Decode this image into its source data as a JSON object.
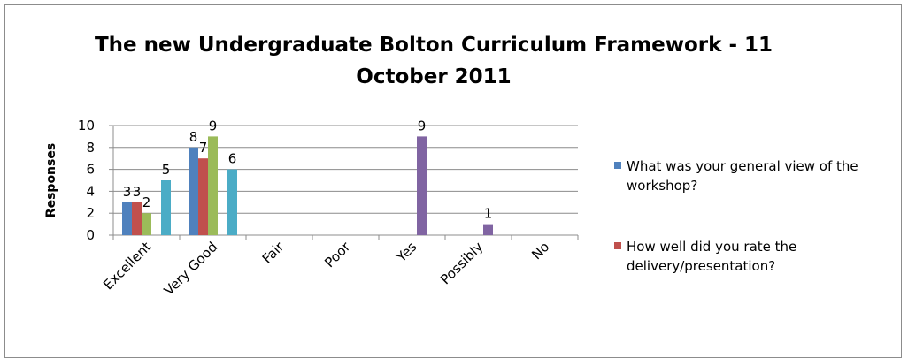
{
  "chart_data": {
    "type": "bar",
    "title_lines": [
      "The new Undergraduate  Bolton Curriculum Framework - 11",
      "October 2011"
    ],
    "ylabel": "Responses",
    "xlabel": "",
    "ylim": [
      0,
      10
    ],
    "yticks": [
      0,
      2,
      4,
      6,
      8,
      10
    ],
    "grid": true,
    "legend_position": "right",
    "categories": [
      "Excellent",
      "Very Good",
      "Fair",
      "Poor",
      "Yes",
      "Possibly",
      "No"
    ],
    "series": [
      {
        "name": "What was your general view of the workshop?",
        "color": "#4f81bd",
        "values": [
          3,
          8,
          null,
          null,
          null,
          null,
          null
        ]
      },
      {
        "name": "How well did you rate the delivery/presentation?",
        "color": "#c0504d",
        "values": [
          3,
          7,
          null,
          null,
          null,
          null,
          null
        ]
      },
      {
        "name": "",
        "color": "#9bbb59",
        "values": [
          2,
          9,
          null,
          null,
          null,
          null,
          null
        ]
      },
      {
        "name": "",
        "color": "#8064a2",
        "values": [
          null,
          null,
          null,
          null,
          9,
          1,
          null
        ]
      },
      {
        "name": "",
        "color": "#4bacc6",
        "values": [
          5,
          6,
          null,
          null,
          null,
          null,
          null
        ]
      }
    ]
  },
  "legend": {
    "items": [
      {
        "label_line1": "What was your general view of the",
        "label_line2": "workshop?",
        "color": "#4f81bd"
      },
      {
        "label_line1": "How well did you rate the",
        "label_line2": "delivery/presentation?",
        "color": "#c0504d"
      }
    ]
  }
}
